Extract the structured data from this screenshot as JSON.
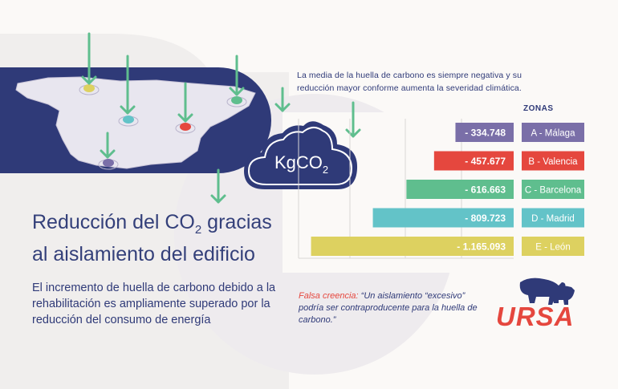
{
  "note": "La media de la huella de carbono es siempre negativa y su reducción mayor conforme aumenta la severidad climática.",
  "zonas_heading": "ZONAS",
  "cloud_label": {
    "main": "KgCO",
    "sub": "2"
  },
  "headline": {
    "line1a": "Reducción del CO",
    "line1sub": "2",
    "line1b": " gracias",
    "line2": "al aislamiento del edificio"
  },
  "description": "El incremento de huella de carbono debido a la rehabilitación es ampliamente superado por la reducción del consumo de energía",
  "false_belief": {
    "label": "Falsa creencia:",
    "text": " “Un aislamiento “excesivo” podría ser contraproducente para la huella de carbono.”"
  },
  "brand": "URSA",
  "colors": {
    "navy": "#2f3a78",
    "malaga": "#7a6fa8",
    "valencia": "#e5473e",
    "barcelona": "#5fbe8e",
    "madrid": "#63c3c8",
    "leon": "#ddd160",
    "arrow": "#5fbe8e"
  },
  "map_markers": [
    {
      "zone": "Málaga",
      "color": "#7a6fa8"
    },
    {
      "zone": "Valencia",
      "color": "#e5473e"
    },
    {
      "zone": "Barcelona",
      "color": "#5fbe8e"
    },
    {
      "zone": "Madrid",
      "color": "#63c3c8"
    },
    {
      "zone": "León",
      "color": "#ddd160"
    }
  ],
  "chart_data": {
    "type": "bar",
    "orientation": "horizontal",
    "categories": [
      "A - Málaga",
      "B - Valencia",
      "C - Barcelona",
      "D - Madrid",
      "E - León"
    ],
    "values": [
      -334748,
      -457677,
      -616663,
      -809723,
      -1165093
    ],
    "value_labels": [
      "- 334.748",
      "- 457.677",
      "- 616.663",
      "- 809.723",
      "- 1.165.093"
    ],
    "zone_letters": [
      "A",
      "B",
      "C",
      "D",
      "E"
    ],
    "zone_names": [
      "Málaga",
      "Valencia",
      "Barcelona",
      "Madrid",
      "León"
    ],
    "colors": [
      "#7a6fa8",
      "#e5473e",
      "#5fbe8e",
      "#63c3c8",
      "#ddd160"
    ],
    "xlim": [
      -1200000,
      0
    ],
    "grid": true,
    "legend": "right"
  }
}
